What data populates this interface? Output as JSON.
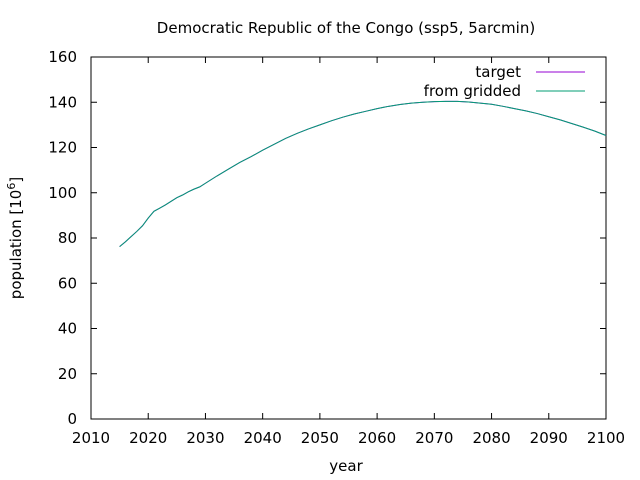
{
  "chart_data": {
    "type": "line",
    "title": "Democratic Republic of the Congo (ssp5, 5arcmin)",
    "xlabel": "year",
    "ylabel": "population [10",
    "ylabel_sup": "6",
    "ylabel_tail": "]",
    "xlim": [
      2010,
      2100
    ],
    "ylim": [
      0,
      160
    ],
    "xticks": [
      2010,
      2020,
      2030,
      2040,
      2050,
      2060,
      2070,
      2080,
      2090,
      2100
    ],
    "yticks": [
      0,
      20,
      40,
      60,
      80,
      100,
      120,
      140,
      160
    ],
    "grid": false,
    "legend_position": "top-right",
    "series": [
      {
        "name": "target",
        "color": "#9400d3",
        "x": [
          2015,
          2016,
          2017,
          2018,
          2019,
          2020,
          2021,
          2022,
          2023,
          2024,
          2025,
          2026,
          2027,
          2028,
          2029,
          2030,
          2032,
          2034,
          2036,
          2038,
          2040,
          2042,
          2044,
          2046,
          2048,
          2050,
          2052,
          2054,
          2056,
          2058,
          2060,
          2062,
          2064,
          2066,
          2068,
          2070,
          2072,
          2074,
          2076,
          2078,
          2080,
          2082,
          2084,
          2086,
          2088,
          2090,
          2092,
          2094,
          2096,
          2098,
          2100
        ],
        "values": [
          76.2,
          78.3,
          80.6,
          82.9,
          85.4,
          88.8,
          91.8,
          93.2,
          94.6,
          96.2,
          97.8,
          99.0,
          100.4,
          101.6,
          102.6,
          104.2,
          107.4,
          110.4,
          113.4,
          116.0,
          118.8,
          121.4,
          124.0,
          126.2,
          128.2,
          130.0,
          131.8,
          133.4,
          134.8,
          136.0,
          137.2,
          138.2,
          139.0,
          139.6,
          140.0,
          140.3,
          140.4,
          140.4,
          140.1,
          139.6,
          139.1,
          138.2,
          137.2,
          136.2,
          135.0,
          133.6,
          132.2,
          130.6,
          129.0,
          127.3,
          125.3
        ]
      },
      {
        "name": "from gridded",
        "color": "#009e73",
        "x": [
          2015,
          2016,
          2017,
          2018,
          2019,
          2020,
          2021,
          2022,
          2023,
          2024,
          2025,
          2026,
          2027,
          2028,
          2029,
          2030,
          2032,
          2034,
          2036,
          2038,
          2040,
          2042,
          2044,
          2046,
          2048,
          2050,
          2052,
          2054,
          2056,
          2058,
          2060,
          2062,
          2064,
          2066,
          2068,
          2070,
          2072,
          2074,
          2076,
          2078,
          2080,
          2082,
          2084,
          2086,
          2088,
          2090,
          2092,
          2094,
          2096,
          2098,
          2100
        ],
        "values": [
          76.2,
          78.3,
          80.6,
          82.9,
          85.4,
          88.8,
          91.8,
          93.2,
          94.6,
          96.2,
          97.8,
          99.0,
          100.4,
          101.6,
          102.6,
          104.2,
          107.4,
          110.4,
          113.4,
          116.0,
          118.8,
          121.4,
          124.0,
          126.2,
          128.2,
          130.0,
          131.8,
          133.4,
          134.8,
          136.0,
          137.2,
          138.2,
          139.0,
          139.6,
          140.0,
          140.3,
          140.4,
          140.4,
          140.1,
          139.6,
          139.1,
          138.2,
          137.2,
          136.2,
          135.0,
          133.6,
          132.2,
          130.6,
          129.0,
          127.3,
          125.3
        ]
      }
    ]
  }
}
